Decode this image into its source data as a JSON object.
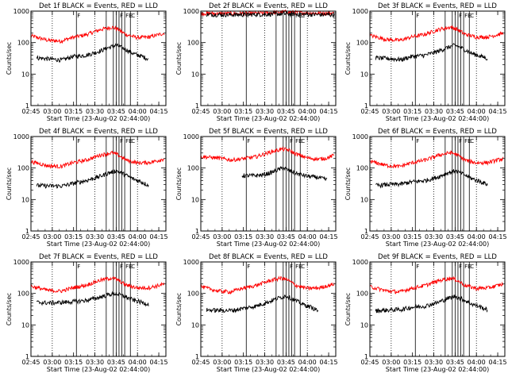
{
  "figure": {
    "xlabel": "Start Time (23-Aug-02 02:44:00)",
    "ylabel": "Counts/sec",
    "x_ticks": [
      "02:45",
      "03:00",
      "03:15",
      "03:30",
      "03:45",
      "04:00",
      "04:15"
    ],
    "x_tick_minutes": [
      1,
      16,
      31,
      46,
      61,
      76,
      91
    ],
    "x_range_minutes": [
      1,
      96
    ],
    "y_ticks": [
      "1",
      "10",
      "100",
      "1000"
    ],
    "y_tick_values": [
      1,
      10,
      100,
      1000
    ],
    "y_range": [
      1,
      1000
    ],
    "y_scale": "log",
    "event_lines_minutes": [
      33,
      54,
      59,
      61,
      63,
      65,
      67,
      71
    ],
    "dotted_lines_minutes": [
      16,
      46,
      76
    ],
    "marker_labels": [
      {
        "text": "F",
        "minute": 33
      },
      {
        "text": "F",
        "minute": 63
      },
      {
        "text": "FE",
        "minute": 67
      },
      {
        "text": "C",
        "minute": 71
      }
    ],
    "colors": {
      "events": "#000000",
      "lld": "#ff0000",
      "axes": "#000000"
    }
  },
  "chart_data": [
    {
      "type": "line",
      "title": "Det 1f BLACK = Events, RED = LLD",
      "events_curve": {
        "start": 5,
        "end": 84,
        "points": [
          [
            5,
            33
          ],
          [
            15,
            30
          ],
          [
            23,
            28
          ],
          [
            30,
            36
          ],
          [
            40,
            40
          ],
          [
            49,
            53
          ],
          [
            55,
            68
          ],
          [
            61,
            83
          ],
          [
            67,
            63
          ],
          [
            73,
            45
          ],
          [
            79,
            37
          ],
          [
            84,
            30
          ]
        ]
      },
      "lld_curve": {
        "start": 1,
        "end": 95,
        "points": [
          [
            1,
            165
          ],
          [
            13,
            118
          ],
          [
            22,
            112
          ],
          [
            30,
            145
          ],
          [
            40,
            180
          ],
          [
            50,
            260
          ],
          [
            58,
            310
          ],
          [
            62,
            270
          ],
          [
            68,
            180
          ],
          [
            76,
            145
          ],
          [
            84,
            150
          ],
          [
            90,
            175
          ],
          [
            95,
            200
          ]
        ]
      }
    },
    {
      "type": "line",
      "title": "Det 2f BLACK = Events, RED = LLD",
      "events_curve": {
        "start": 5,
        "end": 95,
        "points": [
          [
            5,
            780
          ],
          [
            15,
            775
          ],
          [
            25,
            770
          ],
          [
            35,
            780
          ],
          [
            45,
            790
          ],
          [
            55,
            815
          ],
          [
            60,
            830
          ],
          [
            65,
            810
          ],
          [
            75,
            790
          ],
          [
            85,
            775
          ],
          [
            95,
            770
          ]
        ]
      },
      "lld_curve": {
        "start": 1,
        "end": 95,
        "points": [
          [
            1,
            850
          ],
          [
            15,
            840
          ],
          [
            25,
            840
          ],
          [
            35,
            850
          ],
          [
            45,
            860
          ],
          [
            55,
            920
          ],
          [
            60,
            960
          ],
          [
            65,
            920
          ],
          [
            75,
            880
          ],
          [
            85,
            860
          ],
          [
            95,
            850
          ]
        ]
      }
    },
    {
      "type": "line",
      "title": "Det 3f BLACK = Events, RED = LLD",
      "events_curve": {
        "start": 5,
        "end": 84,
        "points": [
          [
            5,
            33
          ],
          [
            15,
            31
          ],
          [
            23,
            29
          ],
          [
            30,
            36
          ],
          [
            40,
            40
          ],
          [
            49,
            53
          ],
          [
            55,
            68
          ],
          [
            61,
            83
          ],
          [
            67,
            63
          ],
          [
            73,
            45
          ],
          [
            79,
            37
          ],
          [
            84,
            31
          ]
        ]
      },
      "lld_curve": {
        "start": 1,
        "end": 95,
        "points": [
          [
            1,
            170
          ],
          [
            13,
            125
          ],
          [
            22,
            118
          ],
          [
            30,
            150
          ],
          [
            40,
            185
          ],
          [
            50,
            265
          ],
          [
            58,
            310
          ],
          [
            62,
            270
          ],
          [
            68,
            185
          ],
          [
            76,
            150
          ],
          [
            84,
            152
          ],
          [
            90,
            175
          ],
          [
            95,
            200
          ]
        ]
      }
    },
    {
      "type": "line",
      "title": "Det 4f BLACK = Events, RED = LLD",
      "events_curve": {
        "start": 5,
        "end": 84,
        "points": [
          [
            5,
            28
          ],
          [
            15,
            27
          ],
          [
            23,
            27
          ],
          [
            30,
            32
          ],
          [
            40,
            40
          ],
          [
            49,
            53
          ],
          [
            55,
            68
          ],
          [
            61,
            82
          ],
          [
            67,
            62
          ],
          [
            73,
            45
          ],
          [
            79,
            36
          ],
          [
            84,
            28
          ]
        ]
      },
      "lld_curve": {
        "start": 1,
        "end": 95,
        "points": [
          [
            1,
            160
          ],
          [
            13,
            118
          ],
          [
            22,
            112
          ],
          [
            30,
            145
          ],
          [
            40,
            180
          ],
          [
            50,
            260
          ],
          [
            58,
            305
          ],
          [
            62,
            265
          ],
          [
            68,
            180
          ],
          [
            76,
            145
          ],
          [
            84,
            150
          ],
          [
            90,
            170
          ],
          [
            95,
            200
          ]
        ]
      }
    },
    {
      "type": "line",
      "title": "Det 5f BLACK = Events, RED = LLD",
      "events_curve": {
        "start": 30,
        "end": 90,
        "points": [
          [
            30,
            58
          ],
          [
            38,
            57
          ],
          [
            45,
            61
          ],
          [
            51,
            73
          ],
          [
            55,
            87
          ],
          [
            59,
            102
          ],
          [
            64,
            80
          ],
          [
            70,
            64
          ],
          [
            76,
            55
          ],
          [
            84,
            50
          ],
          [
            90,
            42
          ]
        ]
      },
      "lld_curve": {
        "start": 1,
        "end": 95,
        "points": [
          [
            1,
            230
          ],
          [
            13,
            210
          ],
          [
            22,
            180
          ],
          [
            30,
            195
          ],
          [
            40,
            230
          ],
          [
            50,
            320
          ],
          [
            58,
            400
          ],
          [
            63,
            370
          ],
          [
            68,
            280
          ],
          [
            76,
            210
          ],
          [
            84,
            190
          ],
          [
            90,
            210
          ],
          [
            95,
            260
          ]
        ]
      }
    },
    {
      "type": "line",
      "title": "Det 6f BLACK = Events, RED = LLD",
      "events_curve": {
        "start": 5,
        "end": 84,
        "points": [
          [
            5,
            28
          ],
          [
            15,
            30
          ],
          [
            23,
            31
          ],
          [
            30,
            36
          ],
          [
            40,
            40
          ],
          [
            49,
            52
          ],
          [
            55,
            68
          ],
          [
            61,
            82
          ],
          [
            67,
            63
          ],
          [
            73,
            46
          ],
          [
            79,
            37
          ],
          [
            84,
            30
          ]
        ]
      },
      "lld_curve": {
        "start": 1,
        "end": 95,
        "points": [
          [
            1,
            165
          ],
          [
            13,
            120
          ],
          [
            22,
            112
          ],
          [
            30,
            145
          ],
          [
            40,
            180
          ],
          [
            50,
            260
          ],
          [
            58,
            310
          ],
          [
            62,
            270
          ],
          [
            68,
            180
          ],
          [
            76,
            145
          ],
          [
            84,
            150
          ],
          [
            90,
            175
          ],
          [
            95,
            200
          ]
        ]
      }
    },
    {
      "type": "line",
      "title": "Det 7f BLACK = Events, RED = LLD",
      "events_curve": {
        "start": 5,
        "end": 84,
        "points": [
          [
            5,
            52
          ],
          [
            15,
            50
          ],
          [
            23,
            52
          ],
          [
            30,
            55
          ],
          [
            40,
            60
          ],
          [
            49,
            75
          ],
          [
            55,
            90
          ],
          [
            61,
            100
          ],
          [
            67,
            80
          ],
          [
            73,
            62
          ],
          [
            79,
            52
          ],
          [
            84,
            46
          ]
        ]
      },
      "lld_curve": {
        "start": 1,
        "end": 95,
        "points": [
          [
            1,
            170
          ],
          [
            13,
            125
          ],
          [
            22,
            118
          ],
          [
            30,
            150
          ],
          [
            40,
            185
          ],
          [
            50,
            265
          ],
          [
            58,
            310
          ],
          [
            62,
            270
          ],
          [
            68,
            185
          ],
          [
            76,
            150
          ],
          [
            84,
            152
          ],
          [
            90,
            175
          ],
          [
            95,
            200
          ]
        ]
      }
    },
    {
      "type": "line",
      "title": "Det 8f BLACK = Events, RED = LLD",
      "events_curve": {
        "start": 5,
        "end": 84,
        "points": [
          [
            5,
            30
          ],
          [
            15,
            29
          ],
          [
            23,
            29
          ],
          [
            30,
            33
          ],
          [
            40,
            40
          ],
          [
            49,
            55
          ],
          [
            55,
            70
          ],
          [
            61,
            85
          ],
          [
            67,
            62
          ],
          [
            73,
            45
          ],
          [
            79,
            36
          ],
          [
            84,
            28
          ]
        ]
      },
      "lld_curve": {
        "start": 1,
        "end": 95,
        "points": [
          [
            1,
            165
          ],
          [
            13,
            120
          ],
          [
            22,
            112
          ],
          [
            30,
            145
          ],
          [
            40,
            180
          ],
          [
            50,
            260
          ],
          [
            58,
            310
          ],
          [
            62,
            270
          ],
          [
            68,
            180
          ],
          [
            76,
            145
          ],
          [
            84,
            150
          ],
          [
            90,
            175
          ],
          [
            95,
            200
          ]
        ]
      }
    },
    {
      "type": "line",
      "title": "Det 9f BLACK = Events, RED = LLD",
      "events_curve": {
        "start": 5,
        "end": 84,
        "points": [
          [
            5,
            28
          ],
          [
            15,
            30
          ],
          [
            23,
            31
          ],
          [
            30,
            36
          ],
          [
            40,
            40
          ],
          [
            49,
            52
          ],
          [
            55,
            68
          ],
          [
            61,
            82
          ],
          [
            67,
            63
          ],
          [
            73,
            46
          ],
          [
            79,
            37
          ],
          [
            84,
            30
          ]
        ]
      },
      "lld_curve": {
        "start": 1,
        "end": 95,
        "points": [
          [
            1,
            165
          ],
          [
            13,
            120
          ],
          [
            22,
            112
          ],
          [
            30,
            145
          ],
          [
            40,
            180
          ],
          [
            50,
            260
          ],
          [
            58,
            310
          ],
          [
            62,
            270
          ],
          [
            68,
            180
          ],
          [
            76,
            145
          ],
          [
            84,
            150
          ],
          [
            90,
            175
          ],
          [
            95,
            200
          ]
        ]
      }
    }
  ]
}
